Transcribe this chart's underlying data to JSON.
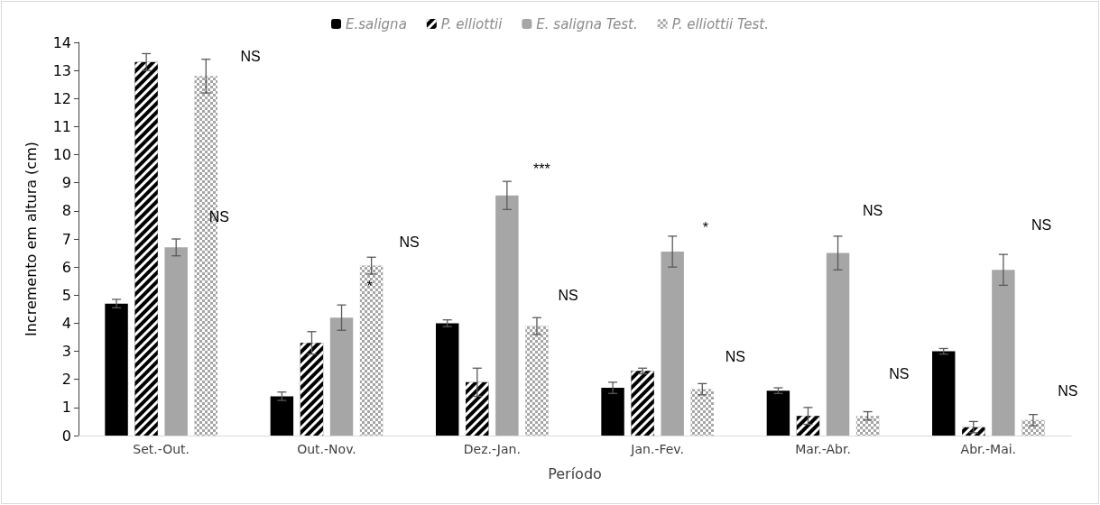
{
  "chart_data": {
    "type": "bar",
    "xlabel": "Período",
    "ylabel": "Incremento em altura (cm)",
    "categories": [
      "Set.-Out.",
      "Out.-Nov.",
      "Dez.-Jan.",
      "Jan.-Fev.",
      "Mar.-Abr.",
      "Abr.-Mai."
    ],
    "series": [
      {
        "name": "E.saligna",
        "color": "#000000",
        "values": [
          4.7,
          1.4,
          4.0,
          1.7,
          1.6,
          3.0
        ],
        "errors": [
          0.15,
          0.15,
          0.12,
          0.2,
          0.1,
          0.1
        ]
      },
      {
        "name": "P. elliottii",
        "color": "#000000",
        "values": [
          13.3,
          3.3,
          1.9,
          2.3,
          0.7,
          0.3
        ],
        "errors": [
          0.3,
          0.4,
          0.5,
          0.1,
          0.3,
          0.2
        ]
      },
      {
        "name": "E. saligna Test.",
        "color": "#a6a6a6",
        "values": [
          6.7,
          4.2,
          8.55,
          6.55,
          6.5,
          5.9
        ],
        "errors": [
          0.3,
          0.45,
          0.5,
          0.55,
          0.6,
          0.55
        ]
      },
      {
        "name": "P. elliottii Test.",
        "color": "#a6a6a6",
        "values": [
          12.8,
          6.05,
          3.9,
          1.65,
          0.7,
          0.55
        ],
        "errors": [
          0.6,
          0.3,
          0.3,
          0.2,
          0.15,
          0.2
        ]
      }
    ],
    "ylim": [
      0,
      14
    ],
    "yticks": [
      0,
      1,
      2,
      3,
      4,
      5,
      6,
      7,
      8,
      9,
      10,
      11,
      12,
      13,
      14
    ],
    "grid": false,
    "legend": "top",
    "annotations": [
      "NS",
      "NS",
      "NS",
      "*",
      "***",
      "NS",
      "*",
      "NS",
      "NS",
      "NS",
      "NS",
      "NS"
    ]
  }
}
